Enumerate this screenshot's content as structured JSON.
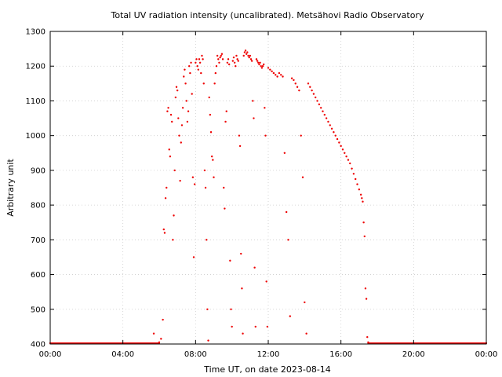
{
  "chart_data": {
    "type": "scatter",
    "title": "Total UV radiation intensity (uncalibrated). Metsähovi Radio Observatory",
    "xlabel": "Time UT, on date 2023-08-14",
    "ylabel": "Arbitrary unit",
    "x_unit": "hours UT",
    "xlim": [
      0,
      24
    ],
    "ylim": [
      400,
      1300
    ],
    "x_ticks": [
      {
        "value": 0,
        "label": "00:00"
      },
      {
        "value": 4,
        "label": "04:00"
      },
      {
        "value": 8,
        "label": "08:00"
      },
      {
        "value": 12,
        "label": "12:00"
      },
      {
        "value": 16,
        "label": "16:00"
      },
      {
        "value": 20,
        "label": "20:00"
      },
      {
        "value": 24,
        "label": "00:00"
      }
    ],
    "y_ticks": [
      400,
      500,
      600,
      700,
      800,
      900,
      1000,
      1100,
      1200,
      1300
    ],
    "grid": true,
    "marker_color": "#ee0000",
    "series": [
      {
        "points": [
          [
            5.7,
            430
          ],
          [
            6.0,
            405
          ],
          [
            6.1,
            415
          ],
          [
            6.2,
            470
          ],
          [
            6.25,
            730
          ],
          [
            6.3,
            720
          ],
          [
            6.35,
            820
          ],
          [
            6.4,
            850
          ],
          [
            6.45,
            1070
          ],
          [
            6.5,
            1080
          ],
          [
            6.55,
            960
          ],
          [
            6.6,
            940
          ],
          [
            6.65,
            1060
          ],
          [
            6.7,
            1040
          ],
          [
            6.75,
            700
          ],
          [
            6.8,
            770
          ],
          [
            6.85,
            900
          ],
          [
            6.9,
            1110
          ],
          [
            6.95,
            1140
          ],
          [
            7.0,
            1130
          ],
          [
            7.05,
            1050
          ],
          [
            7.1,
            1000
          ],
          [
            7.15,
            870
          ],
          [
            7.2,
            980
          ],
          [
            7.25,
            1030
          ],
          [
            7.3,
            1080
          ],
          [
            7.35,
            1170
          ],
          [
            7.4,
            1190
          ],
          [
            7.45,
            1150
          ],
          [
            7.5,
            1100
          ],
          [
            7.55,
            1040
          ],
          [
            7.6,
            1070
          ],
          [
            7.65,
            1200
          ],
          [
            7.7,
            1180
          ],
          [
            7.75,
            1210
          ],
          [
            7.8,
            1120
          ],
          [
            7.85,
            880
          ],
          [
            7.9,
            650
          ],
          [
            7.95,
            860
          ],
          [
            8.0,
            1210
          ],
          [
            8.05,
            1220
          ],
          [
            8.1,
            1200
          ],
          [
            8.15,
            1190
          ],
          [
            8.2,
            1220
          ],
          [
            8.25,
            1210
          ],
          [
            8.3,
            1180
          ],
          [
            8.35,
            1230
          ],
          [
            8.4,
            1220
          ],
          [
            8.45,
            1150
          ],
          [
            8.5,
            900
          ],
          [
            8.55,
            850
          ],
          [
            8.6,
            700
          ],
          [
            8.65,
            500
          ],
          [
            8.7,
            410
          ],
          [
            8.75,
            1110
          ],
          [
            8.8,
            1060
          ],
          [
            8.85,
            1010
          ],
          [
            8.9,
            940
          ],
          [
            8.95,
            930
          ],
          [
            9.0,
            880
          ],
          [
            9.05,
            1150
          ],
          [
            9.1,
            1180
          ],
          [
            9.15,
            1200
          ],
          [
            9.2,
            1230
          ],
          [
            9.25,
            1220
          ],
          [
            9.3,
            1210
          ],
          [
            9.35,
            1225
          ],
          [
            9.4,
            1230
          ],
          [
            9.45,
            1235
          ],
          [
            9.5,
            1220
          ],
          [
            9.55,
            850
          ],
          [
            9.6,
            790
          ],
          [
            9.65,
            1040
          ],
          [
            9.7,
            1070
          ],
          [
            9.75,
            1210
          ],
          [
            9.8,
            1220
          ],
          [
            9.85,
            1205
          ],
          [
            9.9,
            640
          ],
          [
            9.95,
            500
          ],
          [
            10.0,
            450
          ],
          [
            10.05,
            1215
          ],
          [
            10.1,
            1225
          ],
          [
            10.15,
            1210
          ],
          [
            10.2,
            1200
          ],
          [
            10.25,
            1230
          ],
          [
            10.3,
            1220
          ],
          [
            10.35,
            1215
          ],
          [
            10.4,
            1000
          ],
          [
            10.45,
            970
          ],
          [
            10.5,
            660
          ],
          [
            10.55,
            560
          ],
          [
            10.6,
            430
          ],
          [
            10.65,
            1230
          ],
          [
            10.7,
            1240
          ],
          [
            10.75,
            1245
          ],
          [
            10.8,
            1235
          ],
          [
            10.85,
            1240
          ],
          [
            10.9,
            1230
          ],
          [
            10.95,
            1225
          ],
          [
            11.0,
            1230
          ],
          [
            11.05,
            1220
          ],
          [
            11.1,
            1215
          ],
          [
            11.15,
            1100
          ],
          [
            11.2,
            1050
          ],
          [
            11.25,
            620
          ],
          [
            11.3,
            450
          ],
          [
            11.35,
            1220
          ],
          [
            11.4,
            1215
          ],
          [
            11.45,
            1210
          ],
          [
            11.5,
            1205
          ],
          [
            11.55,
            1210
          ],
          [
            11.6,
            1200
          ],
          [
            11.65,
            1195
          ],
          [
            11.7,
            1200
          ],
          [
            11.75,
            1205
          ],
          [
            11.8,
            1080
          ],
          [
            11.85,
            1000
          ],
          [
            11.9,
            580
          ],
          [
            11.95,
            450
          ],
          [
            12.0,
            1195
          ],
          [
            12.1,
            1190
          ],
          [
            12.2,
            1185
          ],
          [
            12.3,
            1180
          ],
          [
            12.4,
            1175
          ],
          [
            12.5,
            1170
          ],
          [
            12.6,
            1180
          ],
          [
            12.7,
            1175
          ],
          [
            12.8,
            1170
          ],
          [
            12.9,
            950
          ],
          [
            13.0,
            780
          ],
          [
            13.1,
            700
          ],
          [
            13.2,
            480
          ],
          [
            13.3,
            1165
          ],
          [
            13.4,
            1160
          ],
          [
            13.5,
            1150
          ],
          [
            13.6,
            1140
          ],
          [
            13.7,
            1130
          ],
          [
            13.8,
            1000
          ],
          [
            13.9,
            880
          ],
          [
            14.0,
            520
          ],
          [
            14.1,
            430
          ],
          [
            14.2,
            1150
          ],
          [
            14.3,
            1140
          ],
          [
            14.4,
            1130
          ],
          [
            14.5,
            1120
          ],
          [
            14.6,
            1110
          ],
          [
            14.7,
            1100
          ],
          [
            14.8,
            1090
          ],
          [
            14.9,
            1080
          ],
          [
            15.0,
            1070
          ],
          [
            15.1,
            1060
          ],
          [
            15.2,
            1050
          ],
          [
            15.3,
            1040
          ],
          [
            15.4,
            1030
          ],
          [
            15.5,
            1020
          ],
          [
            15.6,
            1010
          ],
          [
            15.7,
            1000
          ],
          [
            15.8,
            990
          ],
          [
            15.9,
            980
          ],
          [
            16.0,
            970
          ],
          [
            16.1,
            960
          ],
          [
            16.2,
            950
          ],
          [
            16.3,
            940
          ],
          [
            16.4,
            930
          ],
          [
            16.5,
            920
          ],
          [
            16.6,
            905
          ],
          [
            16.7,
            890
          ],
          [
            16.8,
            875
          ],
          [
            16.9,
            860
          ],
          [
            17.0,
            845
          ],
          [
            17.1,
            830
          ],
          [
            17.15,
            820
          ],
          [
            17.2,
            810
          ],
          [
            17.25,
            750
          ],
          [
            17.3,
            710
          ],
          [
            17.35,
            560
          ],
          [
            17.4,
            530
          ],
          [
            17.45,
            420
          ],
          [
            17.5,
            405
          ]
        ]
      }
    ],
    "baseline": {
      "y": 400,
      "x_ranges": [
        [
          0,
          6.0
        ],
        [
          17.5,
          24
        ]
      ]
    }
  }
}
